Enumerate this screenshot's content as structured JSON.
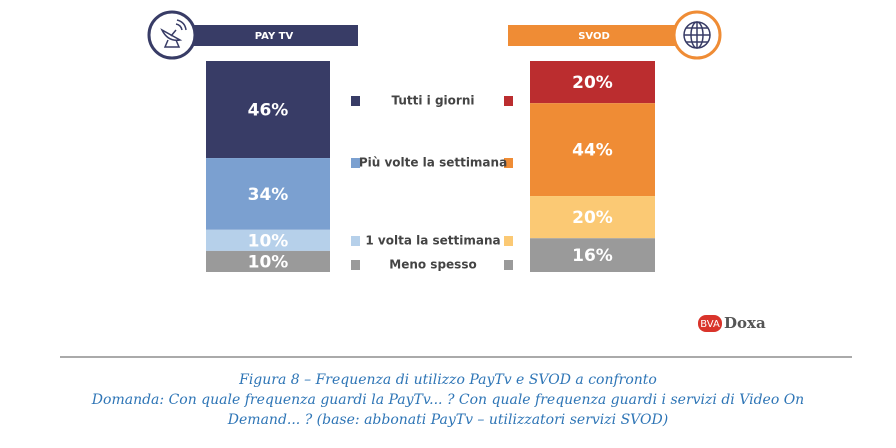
{
  "chart_data": {
    "type": "stacked_bar",
    "segments": [
      "Tutti i giorni",
      "Più volte la settimana",
      "1 volta la settimana",
      "Meno spesso"
    ],
    "series": [
      {
        "name": "PAY TV",
        "color": "#383c66",
        "colors": [
          "#383c66",
          "#7ba0d0",
          "#b6d0ea",
          "#9a9a9a"
        ],
        "values": [
          46,
          34,
          10,
          10
        ],
        "value_labels": [
          "46%",
          "34%",
          "10%",
          "10%"
        ]
      },
      {
        "name": "SVOD",
        "color": "#ef8c35",
        "colors": [
          "#bb2d2f",
          "#ef8c35",
          "#fbc974",
          "#9a9a9a"
        ],
        "values": [
          20,
          44,
          20,
          16
        ],
        "value_labels": [
          "20%",
          "44%",
          "20%",
          "16%"
        ]
      }
    ],
    "title": "Figura 8 – Frequenza di utilizzo PayTv e SVOD a confronto",
    "subtitle": "Domanda: Con quale frequenza guardi la PayTv... ? Con quale frequenza guardi i servizi di Video On Demand... ? (base: abbonati PayTv – utilizzatori servizi SVOD)"
  },
  "logo": {
    "prefix": "BVA",
    "name": "Doxa"
  }
}
